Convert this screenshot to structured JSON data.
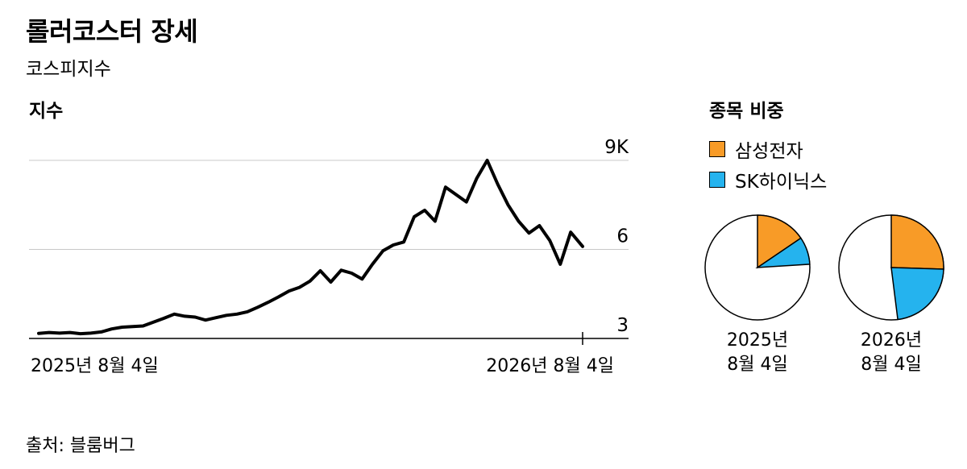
{
  "header": {
    "title": "롤러코스터 장세",
    "subtitle": "코스피지수"
  },
  "source": "출처: 블룸버그",
  "colors": {
    "samsung": "#F89B27",
    "skhynix": "#25B3EE",
    "line": "#000000",
    "grid": "#c8c8c8"
  },
  "chart_data": [
    {
      "type": "line",
      "title": "지수",
      "xlabel": "",
      "ylabel": "",
      "x_tick_labels": [
        "2025년 8월 4일",
        "2026년 8월 4일"
      ],
      "x_range": [
        "2025-08-04",
        "2026-08-04"
      ],
      "y_tick_labels": [
        "3",
        "6",
        "9K"
      ],
      "y_ticks": [
        3,
        6,
        9
      ],
      "ylim": [
        3,
        9
      ],
      "y_unit": "K",
      "grid": true,
      "series": [
        {
          "x": [
            "2025-08-04",
            "2025-08-11",
            "2025-08-18",
            "2025-08-25",
            "2025-09-01",
            "2025-09-08",
            "2025-09-15",
            "2025-09-22",
            "2025-09-29",
            "2025-10-06",
            "2025-10-13",
            "2025-10-20",
            "2025-10-27",
            "2025-11-03",
            "2025-11-10",
            "2025-11-17",
            "2025-11-24",
            "2025-12-01",
            "2025-12-08",
            "2025-12-15",
            "2025-12-22",
            "2025-12-29",
            "2026-01-05",
            "2026-01-12",
            "2026-01-19",
            "2026-01-26",
            "2026-02-02",
            "2026-02-09",
            "2026-02-16",
            "2026-02-23",
            "2026-03-02",
            "2026-03-09",
            "2026-03-16",
            "2026-03-23",
            "2026-03-30",
            "2026-04-06",
            "2026-04-13",
            "2026-04-20",
            "2026-04-27",
            "2026-05-04",
            "2026-05-11",
            "2026-05-18",
            "2026-05-25",
            "2026-06-01",
            "2026-06-08",
            "2026-06-15",
            "2026-06-22",
            "2026-06-29",
            "2026-07-06",
            "2026-07-13",
            "2026-07-20",
            "2026-07-27",
            "2026-08-04"
          ],
          "values": [
            3.17,
            3.2,
            3.18,
            3.2,
            3.16,
            3.18,
            3.22,
            3.32,
            3.38,
            3.4,
            3.42,
            3.55,
            3.68,
            3.82,
            3.75,
            3.72,
            3.62,
            3.7,
            3.78,
            3.82,
            3.9,
            4.05,
            4.22,
            4.4,
            4.6,
            4.72,
            4.93,
            5.28,
            4.9,
            5.3,
            5.2,
            5.0,
            5.5,
            5.95,
            6.15,
            6.25,
            7.1,
            7.32,
            6.95,
            8.1,
            7.85,
            7.6,
            8.4,
            9.0,
            8.2,
            7.5,
            6.95,
            6.55,
            6.8,
            6.3,
            5.5,
            6.58,
            6.1
          ]
        }
      ]
    },
    {
      "type": "pie",
      "title": "종목 비중",
      "legend": [
        "삼성전자",
        "SK하이닉스"
      ],
      "categories": [
        "2025년 8월 4일",
        "2026년 8월 4일"
      ],
      "label_lines": [
        [
          "2025년",
          "8월 4일"
        ],
        [
          "2026년",
          "8월 4일"
        ]
      ],
      "series": [
        {
          "name": "삼성전자",
          "values": [
            15.5,
            25.5
          ]
        },
        {
          "name": "SK하이닉스",
          "values": [
            8.5,
            22.5
          ]
        }
      ]
    }
  ]
}
